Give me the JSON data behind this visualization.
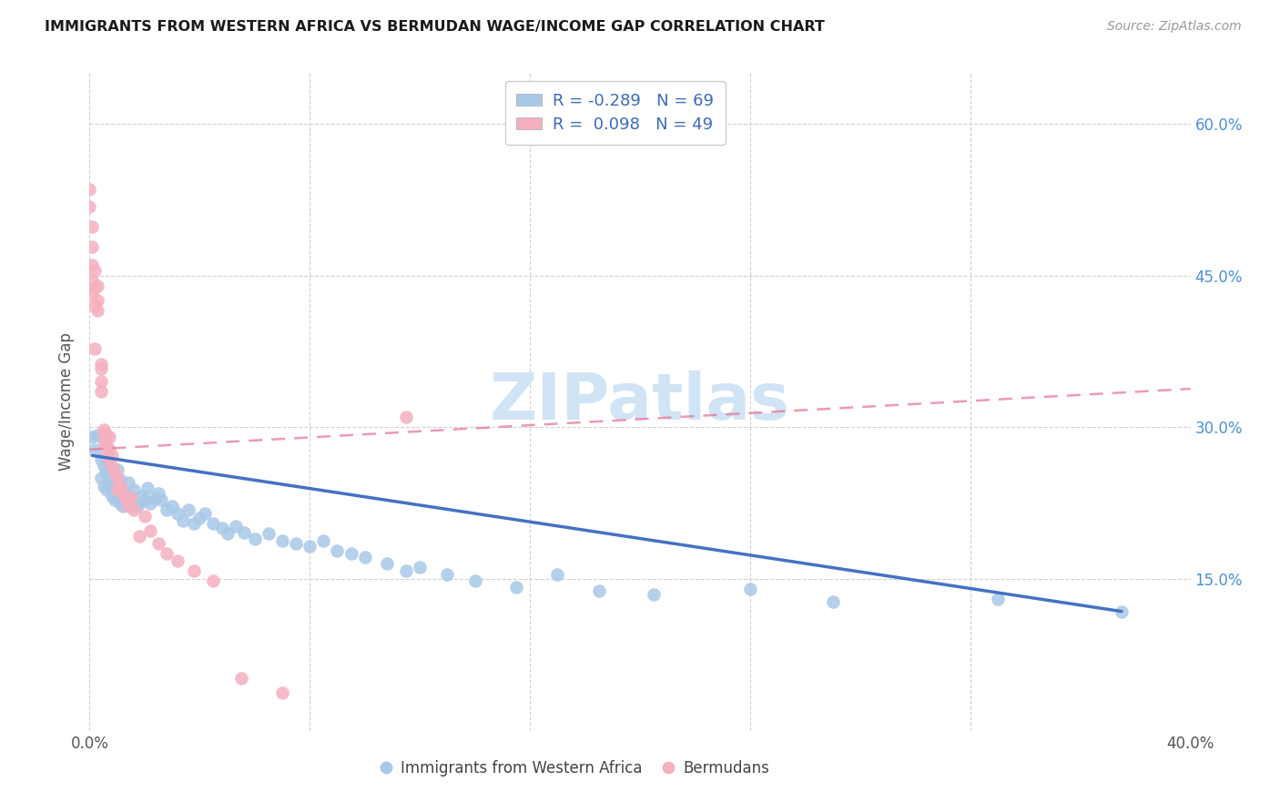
{
  "title": "IMMIGRANTS FROM WESTERN AFRICA VS BERMUDAN WAGE/INCOME GAP CORRELATION CHART",
  "source": "Source: ZipAtlas.com",
  "ylabel": "Wage/Income Gap",
  "xlim": [
    0.0,
    0.4
  ],
  "ylim": [
    0.0,
    0.65
  ],
  "right_yticks": [
    0.15,
    0.3,
    0.45,
    0.6
  ],
  "right_yticklabels": [
    "15.0%",
    "30.0%",
    "45.0%",
    "60.0%"
  ],
  "xticks": [
    0.0,
    0.08,
    0.16,
    0.24,
    0.32,
    0.4
  ],
  "xticklabels": [
    "0.0%",
    "",
    "",
    "",
    "",
    "40.0%"
  ],
  "legend_r_blue": "-0.289",
  "legend_n_blue": "69",
  "legend_r_pink": "0.098",
  "legend_n_pink": "49",
  "blue_color": "#a8c8e8",
  "pink_color": "#f5b0c0",
  "blue_line_color": "#4472c4",
  "pink_line_color": "#e87898",
  "background": "#ffffff",
  "grid_color": "#cccccc",
  "blue_scatter_x": [
    0.001,
    0.002,
    0.003,
    0.004,
    0.004,
    0.005,
    0.005,
    0.006,
    0.006,
    0.007,
    0.007,
    0.008,
    0.008,
    0.009,
    0.009,
    0.01,
    0.01,
    0.011,
    0.011,
    0.012,
    0.012,
    0.013,
    0.014,
    0.015,
    0.016,
    0.017,
    0.018,
    0.019,
    0.02,
    0.021,
    0.022,
    0.024,
    0.025,
    0.026,
    0.028,
    0.03,
    0.032,
    0.034,
    0.036,
    0.038,
    0.04,
    0.042,
    0.045,
    0.048,
    0.05,
    0.053,
    0.056,
    0.06,
    0.065,
    0.07,
    0.075,
    0.08,
    0.085,
    0.09,
    0.095,
    0.1,
    0.108,
    0.115,
    0.12,
    0.13,
    0.14,
    0.155,
    0.17,
    0.185,
    0.205,
    0.24,
    0.27,
    0.33,
    0.375
  ],
  "blue_scatter_y": [
    0.29,
    0.278,
    0.292,
    0.268,
    0.25,
    0.262,
    0.242,
    0.255,
    0.238,
    0.258,
    0.245,
    0.232,
    0.248,
    0.228,
    0.242,
    0.258,
    0.235,
    0.248,
    0.225,
    0.238,
    0.222,
    0.232,
    0.245,
    0.228,
    0.238,
    0.222,
    0.225,
    0.232,
    0.228,
    0.24,
    0.225,
    0.23,
    0.235,
    0.228,
    0.218,
    0.222,
    0.215,
    0.208,
    0.218,
    0.205,
    0.21,
    0.215,
    0.205,
    0.2,
    0.195,
    0.202,
    0.196,
    0.19,
    0.195,
    0.188,
    0.185,
    0.182,
    0.188,
    0.178,
    0.175,
    0.172,
    0.165,
    0.158,
    0.162,
    0.155,
    0.148,
    0.142,
    0.155,
    0.138,
    0.135,
    0.14,
    0.128,
    0.13,
    0.118
  ],
  "pink_scatter_x": [
    0.0,
    0.0,
    0.001,
    0.001,
    0.001,
    0.001,
    0.001,
    0.002,
    0.002,
    0.002,
    0.002,
    0.003,
    0.003,
    0.003,
    0.004,
    0.004,
    0.004,
    0.004,
    0.005,
    0.005,
    0.005,
    0.006,
    0.006,
    0.006,
    0.007,
    0.007,
    0.007,
    0.008,
    0.008,
    0.009,
    0.01,
    0.01,
    0.011,
    0.012,
    0.013,
    0.014,
    0.015,
    0.016,
    0.018,
    0.02,
    0.022,
    0.025,
    0.028,
    0.032,
    0.038,
    0.045,
    0.055,
    0.07,
    0.115
  ],
  "pink_scatter_y": [
    0.535,
    0.518,
    0.498,
    0.478,
    0.46,
    0.445,
    0.432,
    0.455,
    0.438,
    0.42,
    0.378,
    0.44,
    0.425,
    0.415,
    0.362,
    0.345,
    0.358,
    0.335,
    0.298,
    0.285,
    0.295,
    0.292,
    0.282,
    0.275,
    0.29,
    0.278,
    0.268,
    0.272,
    0.262,
    0.255,
    0.25,
    0.238,
    0.242,
    0.235,
    0.228,
    0.222,
    0.23,
    0.218,
    0.192,
    0.212,
    0.198,
    0.185,
    0.175,
    0.168,
    0.158,
    0.148,
    0.052,
    0.038,
    0.31
  ],
  "pink_trendline_x0": 0.0,
  "pink_trendline_x1": 0.4,
  "pink_trendline_y0": 0.278,
  "pink_trendline_y1": 0.338,
  "blue_trendline_x0": 0.001,
  "blue_trendline_x1": 0.375,
  "blue_trendline_y0": 0.272,
  "blue_trendline_y1": 0.118,
  "watermark": "ZIPatlas",
  "figsize": [
    14.06,
    8.92
  ],
  "dpi": 100
}
